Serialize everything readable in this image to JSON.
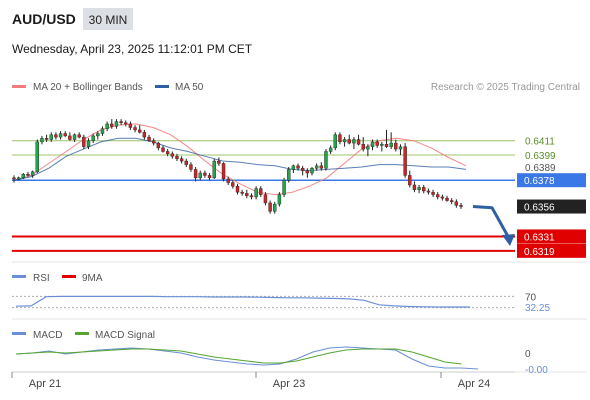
{
  "header": {
    "symbol": "AUD/USD",
    "timeframe": "30 MIN",
    "datetime": "Wednesday, April 23, 2025 11:12:01 PM CET"
  },
  "legend": {
    "ma20": "MA 20 + Bollinger Bands",
    "ma50": "MA 50",
    "credit": "Research © 2025 Trading Central"
  },
  "colors": {
    "ma20": "#f47c7c",
    "ma50": "#2e5fa3",
    "support": "#e00000",
    "pivot": "#3b78e7",
    "resistance": "#9cc46a",
    "up": "#22a64a",
    "down": "#c62828",
    "rsi": "#6b8fd6",
    "macd": "#6b8fd6",
    "signal": "#55a630"
  },
  "chart_data": [
    {
      "type": "candlestick",
      "ylim": [
        0.6313,
        0.6445
      ],
      "price_levels": [
        {
          "value": 0.6411,
          "label": "0.6411",
          "kind": "resistance"
        },
        {
          "value": 0.6399,
          "label": "0.6399",
          "kind": "resistance"
        },
        {
          "value": 0.6389,
          "label": "0.6389",
          "kind": "marker"
        },
        {
          "value": 0.6378,
          "label": "0.6378",
          "kind": "pivot"
        },
        {
          "value": 0.6356,
          "label": "0.6356",
          "kind": "last"
        },
        {
          "value": 0.6331,
          "label": "0.6331",
          "kind": "support"
        },
        {
          "value": 0.6319,
          "label": "0.6319",
          "kind": "support"
        }
      ],
      "series": [
        {
          "name": "MA 20 + Bollinger Bands",
          "values": [
            0.6378,
            0.6382,
            0.6392,
            0.6402,
            0.6412,
            0.642,
            0.6424,
            0.6425,
            0.6422,
            0.6416,
            0.6406,
            0.6394,
            0.6383,
            0.6375,
            0.6368,
            0.6366,
            0.6368,
            0.6373,
            0.638,
            0.6392,
            0.6404,
            0.6411,
            0.6413,
            0.6411,
            0.6405,
            0.6397,
            0.639
          ]
        },
        {
          "name": "MA 50",
          "values": [
            0.6378,
            0.6381,
            0.6388,
            0.6398,
            0.6404,
            0.641,
            0.6413,
            0.6413,
            0.641,
            0.6405,
            0.6402,
            0.6398,
            0.6394,
            0.6393,
            0.6391,
            0.639,
            0.6387,
            0.6386,
            0.6387,
            0.6388,
            0.6389,
            0.6391,
            0.6391,
            0.639,
            0.6389,
            0.6389,
            0.6387
          ]
        }
      ],
      "candles": [
        [
          0.638,
          0.6382,
          0.6376,
          0.6379
        ],
        [
          0.6379,
          0.6381,
          0.6378,
          0.638
        ],
        [
          0.638,
          0.6384,
          0.6379,
          0.6383
        ],
        [
          0.6383,
          0.6385,
          0.6381,
          0.6382
        ],
        [
          0.6382,
          0.6386,
          0.638,
          0.6385
        ],
        [
          0.6385,
          0.6412,
          0.6384,
          0.641
        ],
        [
          0.641,
          0.6415,
          0.6408,
          0.6413
        ],
        [
          0.6413,
          0.6416,
          0.641,
          0.6412
        ],
        [
          0.6412,
          0.6418,
          0.641,
          0.6416
        ],
        [
          0.6416,
          0.6418,
          0.6412,
          0.6414
        ],
        [
          0.6414,
          0.6419,
          0.6412,
          0.6417
        ],
        [
          0.6417,
          0.6419,
          0.6414,
          0.6415
        ],
        [
          0.6415,
          0.6418,
          0.6411,
          0.6412
        ],
        [
          0.6412,
          0.6417,
          0.641,
          0.6416
        ],
        [
          0.6416,
          0.6418,
          0.6413,
          0.6414
        ],
        [
          0.6414,
          0.6416,
          0.6404,
          0.6406
        ],
        [
          0.6406,
          0.6413,
          0.6404,
          0.6411
        ],
        [
          0.6411,
          0.6417,
          0.6409,
          0.6415
        ],
        [
          0.6415,
          0.6419,
          0.6412,
          0.6417
        ],
        [
          0.6417,
          0.6423,
          0.6415,
          0.6421
        ],
        [
          0.6421,
          0.6427,
          0.6419,
          0.6425
        ],
        [
          0.6425,
          0.6429,
          0.6421,
          0.6423
        ],
        [
          0.6423,
          0.6429,
          0.6421,
          0.6427
        ],
        [
          0.6427,
          0.6429,
          0.6424,
          0.6426
        ],
        [
          0.6426,
          0.6428,
          0.6423,
          0.6425
        ],
        [
          0.6425,
          0.6427,
          0.642,
          0.6422
        ],
        [
          0.6422,
          0.6424,
          0.6418,
          0.642
        ],
        [
          0.642,
          0.6424,
          0.6417,
          0.6418
        ],
        [
          0.6418,
          0.642,
          0.6412,
          0.6414
        ],
        [
          0.6414,
          0.6416,
          0.641,
          0.6411
        ],
        [
          0.6411,
          0.6413,
          0.6407,
          0.6409
        ],
        [
          0.6409,
          0.641,
          0.6403,
          0.6405
        ],
        [
          0.6405,
          0.6407,
          0.6401,
          0.6402
        ],
        [
          0.6402,
          0.6404,
          0.6398,
          0.64
        ],
        [
          0.64,
          0.6402,
          0.6396,
          0.6398
        ],
        [
          0.6398,
          0.64,
          0.6394,
          0.6396
        ],
        [
          0.6396,
          0.6398,
          0.6392,
          0.6394
        ],
        [
          0.6394,
          0.6396,
          0.6389,
          0.6391
        ],
        [
          0.6391,
          0.6393,
          0.6385,
          0.6387
        ],
        [
          0.6387,
          0.6389,
          0.6377,
          0.638
        ],
        [
          0.638,
          0.6386,
          0.6378,
          0.6384
        ],
        [
          0.6384,
          0.6386,
          0.638,
          0.6382
        ],
        [
          0.6382,
          0.6384,
          0.6378,
          0.638
        ],
        [
          0.638,
          0.6396,
          0.6379,
          0.6394
        ],
        [
          0.6394,
          0.6397,
          0.639,
          0.6392
        ],
        [
          0.6392,
          0.6393,
          0.6377,
          0.6379
        ],
        [
          0.6379,
          0.6381,
          0.6374,
          0.6376
        ],
        [
          0.6376,
          0.6378,
          0.6371,
          0.6373
        ],
        [
          0.6373,
          0.6375,
          0.6366,
          0.6368
        ],
        [
          0.6368,
          0.637,
          0.6365,
          0.6367
        ],
        [
          0.6367,
          0.637,
          0.6363,
          0.6365
        ],
        [
          0.6365,
          0.6367,
          0.6362,
          0.6364
        ],
        [
          0.6364,
          0.6373,
          0.6362,
          0.6371
        ],
        [
          0.6371,
          0.6373,
          0.6364,
          0.6366
        ],
        [
          0.6366,
          0.6368,
          0.6357,
          0.6359
        ],
        [
          0.6359,
          0.6361,
          0.635,
          0.6352
        ],
        [
          0.6352,
          0.636,
          0.635,
          0.6358
        ],
        [
          0.6358,
          0.6368,
          0.6356,
          0.6366
        ],
        [
          0.6366,
          0.638,
          0.6364,
          0.6378
        ],
        [
          0.6378,
          0.6389,
          0.6376,
          0.6387
        ],
        [
          0.6387,
          0.6391,
          0.6384,
          0.639
        ],
        [
          0.639,
          0.6392,
          0.6386,
          0.6388
        ],
        [
          0.6388,
          0.639,
          0.6382,
          0.6386
        ],
        [
          0.6386,
          0.6388,
          0.638,
          0.6384
        ],
        [
          0.6384,
          0.6389,
          0.6382,
          0.6388
        ],
        [
          0.6388,
          0.6392,
          0.6386,
          0.639
        ],
        [
          0.639,
          0.6393,
          0.6386,
          0.6388
        ],
        [
          0.6388,
          0.6404,
          0.6386,
          0.6402
        ],
        [
          0.6402,
          0.6407,
          0.64,
          0.6405
        ],
        [
          0.6405,
          0.6418,
          0.6403,
          0.6416
        ],
        [
          0.6416,
          0.6418,
          0.6408,
          0.641
        ],
        [
          0.641,
          0.6414,
          0.6406,
          0.6412
        ],
        [
          0.6412,
          0.6416,
          0.6408,
          0.6409
        ],
        [
          0.6409,
          0.6414,
          0.6404,
          0.6412
        ],
        [
          0.6412,
          0.6416,
          0.6407,
          0.6408
        ],
        [
          0.6408,
          0.6414,
          0.6402,
          0.6404
        ],
        [
          0.6404,
          0.6408,
          0.6398,
          0.6406
        ],
        [
          0.6406,
          0.6412,
          0.6403,
          0.641
        ],
        [
          0.641,
          0.6412,
          0.6405,
          0.6407
        ],
        [
          0.6407,
          0.641,
          0.6402,
          0.6408
        ],
        [
          0.6408,
          0.642,
          0.6405,
          0.6406
        ],
        [
          0.6406,
          0.6418,
          0.6404,
          0.6409
        ],
        [
          0.6409,
          0.6412,
          0.6402,
          0.6404
        ],
        [
          0.6404,
          0.6408,
          0.6399,
          0.6406
        ],
        [
          0.6406,
          0.6409,
          0.638,
          0.6382
        ],
        [
          0.6382,
          0.6386,
          0.6372,
          0.6374
        ],
        [
          0.6374,
          0.6377,
          0.6368,
          0.637
        ],
        [
          0.637,
          0.6374,
          0.6367,
          0.6372
        ],
        [
          0.6372,
          0.6374,
          0.6367,
          0.6369
        ],
        [
          0.6369,
          0.6371,
          0.6366,
          0.6368
        ],
        [
          0.6368,
          0.637,
          0.6364,
          0.6366
        ],
        [
          0.6366,
          0.6368,
          0.6362,
          0.6364
        ],
        [
          0.6364,
          0.6366,
          0.6361,
          0.6363
        ],
        [
          0.6363,
          0.6365,
          0.636,
          0.6361
        ],
        [
          0.6361,
          0.6363,
          0.6358,
          0.636
        ],
        [
          0.636,
          0.6362,
          0.6355,
          0.6357
        ],
        [
          0.6357,
          0.6359,
          0.6354,
          0.6356
        ]
      ],
      "forecast": [
        0.6356,
        0.6355,
        0.6328
      ]
    },
    {
      "type": "line",
      "title": "RSI",
      "series": [
        {
          "name": "RSI",
          "values": [
            35,
            36,
            69,
            70,
            70,
            70,
            70,
            70,
            70,
            70,
            69,
            69,
            69,
            68,
            68,
            68,
            67,
            66,
            65,
            65,
            64,
            63,
            61,
            56,
            40,
            36,
            34,
            33,
            32,
            32,
            32
          ]
        },
        {
          "name": "9MA",
          "values": []
        }
      ],
      "levels": [
        {
          "value": 70,
          "label": "70"
        }
      ],
      "last_label": "32.25",
      "ylim": [
        0,
        100
      ]
    },
    {
      "type": "line",
      "title": "MACD",
      "series": [
        {
          "name": "MACD",
          "values": [
            -0.0001,
            0.0,
            0.0002,
            -0.0001,
            0.0001,
            0.0003,
            0.0004,
            0.0005,
            0.0004,
            0.0002,
            0.0,
            -0.0004,
            -0.0007,
            -0.0009,
            -0.0011,
            -0.0012,
            -0.0011,
            -0.0006,
            0.0001,
            0.0005,
            0.0006,
            0.0005,
            0.0004,
            0.0003,
            -0.0006,
            -0.0013,
            -0.0015,
            -0.0015,
            -0.0016
          ]
        },
        {
          "name": "MACD Signal",
          "values": [
            -0.0001,
            0.0,
            0.0001,
            0.0,
            0.0001,
            0.0002,
            0.0003,
            0.0004,
            0.0004,
            0.0003,
            0.0002,
            -0.0001,
            -0.0004,
            -0.0006,
            -0.0008,
            -0.001,
            -0.001,
            -0.0008,
            -0.0004,
            0.0,
            0.0003,
            0.0004,
            0.0004,
            0.0004,
            0.0001,
            -0.0004,
            -0.0009,
            -0.0011,
            null
          ]
        }
      ],
      "levels": [
        {
          "value": 0,
          "label": "0"
        }
      ],
      "last_label": "-0.00",
      "ylim": [
        -0.0017,
        0.001
      ]
    }
  ],
  "x_axis": {
    "ticks": [
      {
        "label": "Apr 21",
        "index": 0
      },
      {
        "label": "Apr 23",
        "index": 1
      },
      {
        "label": "Apr 24",
        "index": 2
      }
    ]
  }
}
